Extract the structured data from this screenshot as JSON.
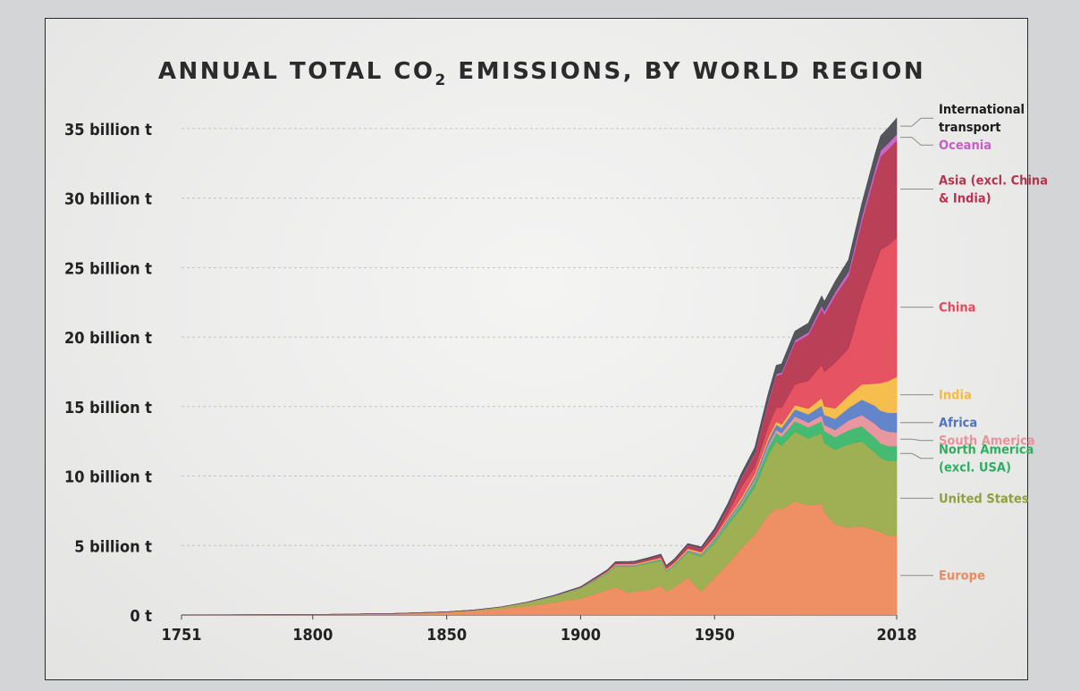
{
  "chart_data": {
    "type": "area",
    "stacked": true,
    "title_main": "ANNUAL TOTAL CO",
    "title_sub": "2",
    "title_rest": " EMISSIONS, BY WORLD REGION",
    "xlabel": "",
    "ylabel": "",
    "xlim": [
      1751,
      2018
    ],
    "ylim": [
      0,
      37500000000
    ],
    "x_ticks": [
      {
        "value": 1751,
        "label": "1751"
      },
      {
        "value": 1800,
        "label": "1800"
      },
      {
        "value": 1850,
        "label": "1850"
      },
      {
        "value": 1900,
        "label": "1900"
      },
      {
        "value": 1950,
        "label": "1950"
      },
      {
        "value": 2018,
        "label": "2018"
      }
    ],
    "y_ticks": [
      {
        "value": 0,
        "label": "0 t"
      },
      {
        "value": 5000000000,
        "label": "5 billion t"
      },
      {
        "value": 10000000000,
        "label": "10 billion t"
      },
      {
        "value": 15000000000,
        "label": "15 billion t"
      },
      {
        "value": 20000000000,
        "label": "20 billion t"
      },
      {
        "value": 25000000000,
        "label": "25 billion t"
      },
      {
        "value": 30000000000,
        "label": "30 billion t"
      },
      {
        "value": 35000000000,
        "label": "35 billion t"
      }
    ],
    "grid": true,
    "legend": "right-inline",
    "x": [
      1751,
      1800,
      1830,
      1850,
      1860,
      1870,
      1880,
      1890,
      1900,
      1905,
      1910,
      1913,
      1918,
      1920,
      1925,
      1930,
      1932,
      1935,
      1940,
      1945,
      1950,
      1955,
      1960,
      1965,
      1970,
      1973,
      1975,
      1980,
      1985,
      1990,
      1991,
      1995,
      2000,
      2005,
      2010,
      2012,
      2015,
      2018
    ],
    "series": [
      {
        "name": "Europe",
        "color": "#ee8a5b",
        "values": [
          0.0,
          0.03,
          0.1,
          0.2,
          0.3,
          0.45,
          0.65,
          0.9,
          1.2,
          1.5,
          1.8,
          2.0,
          1.6,
          1.7,
          1.8,
          2.1,
          1.7,
          2.0,
          2.7,
          1.7,
          2.7,
          3.7,
          4.8,
          5.8,
          7.2,
          7.7,
          7.6,
          8.2,
          7.9,
          8.0,
          7.4,
          6.5,
          6.3,
          6.4,
          6.1,
          6.0,
          5.7,
          5.7
        ]
      },
      {
        "name": "United States",
        "color": "#9aab4a",
        "values": [
          0.0,
          0.0,
          0.01,
          0.03,
          0.06,
          0.12,
          0.25,
          0.45,
          0.7,
          0.95,
          1.2,
          1.5,
          1.9,
          1.8,
          1.9,
          1.8,
          1.4,
          1.55,
          1.8,
          2.5,
          2.5,
          2.8,
          2.9,
          3.4,
          4.3,
          4.8,
          4.6,
          5.0,
          4.8,
          5.1,
          5.0,
          5.4,
          6.0,
          6.1,
          5.6,
          5.3,
          5.4,
          5.4
        ]
      },
      {
        "name": "North America (excl. USA)",
        "color": "#3ab76a",
        "values": [
          0.0,
          0.0,
          0.0,
          0.0,
          0.0,
          0.01,
          0.01,
          0.02,
          0.03,
          0.04,
          0.05,
          0.06,
          0.06,
          0.06,
          0.06,
          0.07,
          0.06,
          0.06,
          0.08,
          0.1,
          0.15,
          0.2,
          0.3,
          0.4,
          0.55,
          0.6,
          0.62,
          0.75,
          0.8,
          0.85,
          0.85,
          0.9,
          1.0,
          1.1,
          1.05,
          1.05,
          1.05,
          1.05
        ]
      },
      {
        "name": "South America",
        "color": "#e8929a",
        "values": [
          0.0,
          0.0,
          0.0,
          0.0,
          0.0,
          0.0,
          0.0,
          0.0,
          0.01,
          0.01,
          0.02,
          0.02,
          0.02,
          0.02,
          0.03,
          0.03,
          0.03,
          0.03,
          0.04,
          0.05,
          0.07,
          0.1,
          0.13,
          0.16,
          0.22,
          0.25,
          0.27,
          0.35,
          0.35,
          0.42,
          0.44,
          0.52,
          0.7,
          0.8,
          1.0,
          1.05,
          1.05,
          1.0
        ]
      },
      {
        "name": "Africa",
        "color": "#5a7ec8",
        "values": [
          0.0,
          0.0,
          0.0,
          0.0,
          0.0,
          0.0,
          0.0,
          0.01,
          0.01,
          0.02,
          0.02,
          0.03,
          0.03,
          0.03,
          0.03,
          0.04,
          0.04,
          0.04,
          0.05,
          0.06,
          0.1,
          0.12,
          0.15,
          0.2,
          0.3,
          0.35,
          0.38,
          0.5,
          0.6,
          0.7,
          0.72,
          0.8,
          0.9,
          1.1,
          1.3,
          1.3,
          1.35,
          1.4
        ]
      },
      {
        "name": "India",
        "color": "#f7bb42",
        "values": [
          0.0,
          0.0,
          0.0,
          0.0,
          0.0,
          0.0,
          0.01,
          0.01,
          0.02,
          0.03,
          0.04,
          0.05,
          0.06,
          0.06,
          0.07,
          0.08,
          0.08,
          0.08,
          0.1,
          0.11,
          0.1,
          0.12,
          0.15,
          0.2,
          0.2,
          0.22,
          0.25,
          0.3,
          0.4,
          0.55,
          0.6,
          0.75,
          0.9,
          1.1,
          1.6,
          2.0,
          2.3,
          2.6
        ]
      },
      {
        "name": "China",
        "color": "#e5495a",
        "values": [
          0.0,
          0.0,
          0.0,
          0.0,
          0.0,
          0.0,
          0.0,
          0.0,
          0.01,
          0.01,
          0.02,
          0.02,
          0.02,
          0.03,
          0.03,
          0.04,
          0.04,
          0.04,
          0.05,
          0.05,
          0.08,
          0.3,
          0.8,
          0.5,
          0.8,
          1.0,
          1.2,
          1.5,
          2.0,
          2.4,
          2.5,
          3.3,
          3.4,
          5.9,
          8.6,
          9.6,
          9.8,
          10.0
        ]
      },
      {
        "name": "Asia (excl. China & India)",
        "color": "#b6354e",
        "values": [
          0.0,
          0.0,
          0.0,
          0.0,
          0.0,
          0.0,
          0.0,
          0.01,
          0.02,
          0.04,
          0.06,
          0.08,
          0.08,
          0.09,
          0.1,
          0.12,
          0.12,
          0.14,
          0.2,
          0.2,
          0.3,
          0.4,
          0.6,
          0.9,
          1.7,
          2.3,
          2.4,
          3.0,
          3.3,
          4.0,
          4.1,
          4.8,
          5.2,
          5.8,
          6.5,
          6.7,
          6.9,
          7.0
        ]
      },
      {
        "name": "Oceania",
        "color": "#c65fc4",
        "values": [
          0.0,
          0.0,
          0.0,
          0.0,
          0.0,
          0.0,
          0.0,
          0.0,
          0.01,
          0.01,
          0.01,
          0.02,
          0.02,
          0.02,
          0.02,
          0.02,
          0.02,
          0.02,
          0.03,
          0.03,
          0.04,
          0.05,
          0.07,
          0.09,
          0.12,
          0.14,
          0.15,
          0.18,
          0.2,
          0.25,
          0.25,
          0.28,
          0.32,
          0.38,
          0.42,
          0.43,
          0.44,
          0.45
        ]
      },
      {
        "name": "International transport",
        "color": "#4a4d53",
        "values": [
          0.0,
          0.0,
          0.0,
          0.0,
          0.0,
          0.0,
          0.01,
          0.02,
          0.03,
          0.04,
          0.05,
          0.06,
          0.06,
          0.06,
          0.07,
          0.08,
          0.08,
          0.08,
          0.1,
          0.1,
          0.2,
          0.25,
          0.3,
          0.4,
          0.55,
          0.6,
          0.6,
          0.65,
          0.65,
          0.7,
          0.7,
          0.75,
          0.85,
          0.95,
          1.05,
          1.05,
          1.1,
          1.15
        ]
      }
    ],
    "value_unit_multiplier": 1000000000,
    "legend_labels": [
      {
        "series": "International transport",
        "lines": [
          "International",
          "transport"
        ],
        "color": "#1c1c1c"
      },
      {
        "series": "Oceania",
        "lines": [
          "Oceania"
        ],
        "color": "#c65fc4"
      },
      {
        "series": "Asia (excl. China & India)",
        "lines": [
          "Asia (excl. China",
          "& India)"
        ],
        "color": "#b6354e"
      },
      {
        "series": "China",
        "lines": [
          "China"
        ],
        "color": "#e5495a"
      },
      {
        "series": "India",
        "lines": [
          "India"
        ],
        "color": "#f7bb42"
      },
      {
        "series": "Africa",
        "lines": [
          "Africa"
        ],
        "color": "#4f73c0"
      },
      {
        "series": "South America",
        "lines": [
          "South America"
        ],
        "color": "#e8929a"
      },
      {
        "series": "North America (excl. USA)",
        "lines": [
          "North America",
          "(excl. USA)"
        ],
        "color": "#2fae62"
      },
      {
        "series": "United States",
        "lines": [
          "United States"
        ],
        "color": "#8fa03e"
      },
      {
        "series": "Europe",
        "lines": [
          "Europe"
        ],
        "color": "#ee8a5b"
      }
    ]
  }
}
